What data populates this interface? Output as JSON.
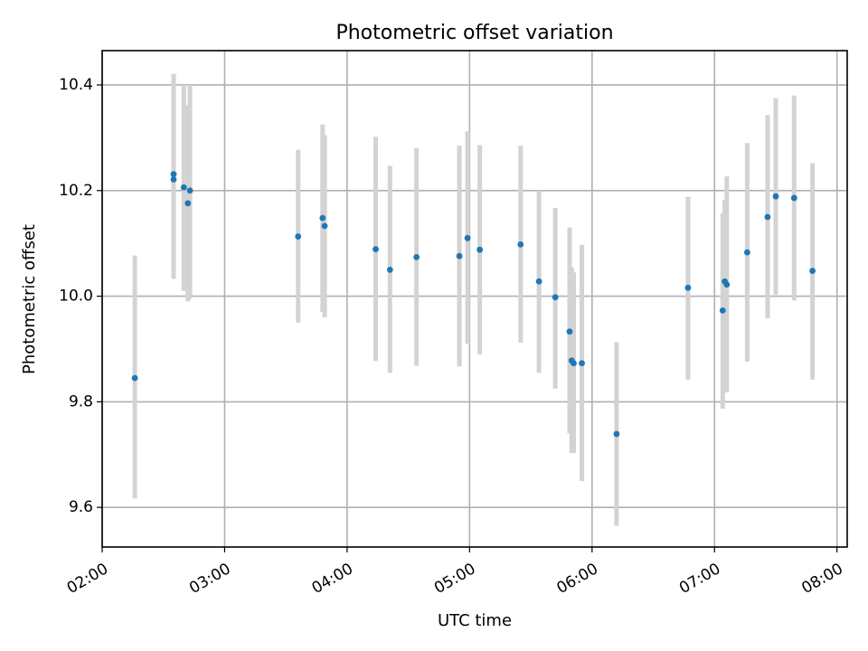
{
  "chart_data": {
    "type": "scatter",
    "title": "Photometric offset variation",
    "xlabel": "UTC time",
    "ylabel": "Photometric offset",
    "xlim": [
      "02:00",
      "08:05"
    ],
    "ylim": [
      9.525,
      10.465
    ],
    "grid": true,
    "xticks": [
      "02:00",
      "03:00",
      "04:00",
      "05:00",
      "06:00",
      "07:00",
      "08:00"
    ],
    "yticks": [
      9.6,
      9.8,
      10.0,
      10.2,
      10.4
    ],
    "ytick_labels": [
      "9.6",
      "9.8",
      "10.0",
      "10.2",
      "10.4"
    ],
    "colors": {
      "points": "#1f77b4",
      "error_bars": "#d3d3d3",
      "grid": "#b0b0b0"
    },
    "series": [
      {
        "x": [
          "02:16",
          "02:35",
          "02:35",
          "02:40",
          "02:42",
          "02:43",
          "03:36",
          "03:48",
          "03:49",
          "04:14",
          "04:21",
          "04:34",
          "04:55",
          "04:59",
          "05:05",
          "05:25",
          "05:34",
          "05:42",
          "05:49",
          "05:50",
          "05:51",
          "05:55",
          "06:12",
          "06:47",
          "07:04",
          "07:05",
          "07:06",
          "07:16",
          "07:26",
          "07:30",
          "07:39",
          "07:48"
        ],
        "y": [
          9.845,
          10.231,
          10.221,
          10.206,
          10.176,
          10.2,
          10.113,
          10.148,
          10.133,
          10.089,
          10.05,
          10.074,
          10.076,
          10.11,
          10.088,
          10.098,
          10.028,
          9.998,
          9.933,
          9.878,
          9.873,
          9.873,
          9.739,
          10.016,
          9.973,
          10.028,
          10.022,
          10.083,
          10.15,
          10.189,
          10.186,
          10.048
        ],
        "y_low": [
          9.617,
          10.033,
          10.033,
          10.01,
          9.99,
          9.995,
          9.95,
          9.97,
          9.96,
          9.877,
          9.855,
          9.868,
          9.867,
          9.91,
          9.89,
          9.912,
          9.855,
          9.825,
          9.74,
          9.703,
          9.703,
          9.65,
          9.565,
          9.842,
          9.787,
          9.83,
          9.818,
          9.876,
          9.958,
          10.003,
          9.992,
          9.842
        ],
        "y_high": [
          10.077,
          10.421,
          10.421,
          10.4,
          10.362,
          10.4,
          10.277,
          10.325,
          10.305,
          10.302,
          10.247,
          10.28,
          10.285,
          10.312,
          10.286,
          10.285,
          10.2,
          10.167,
          10.13,
          10.055,
          10.045,
          10.097,
          9.913,
          10.188,
          10.157,
          10.182,
          10.227,
          10.29,
          10.343,
          10.375,
          10.38,
          10.252
        ]
      }
    ]
  }
}
